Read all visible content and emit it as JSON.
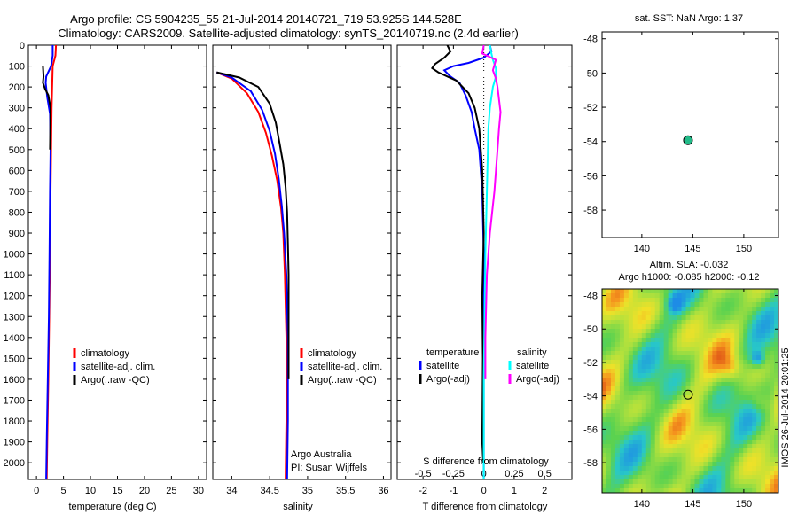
{
  "header": {
    "line1": "Argo profile: CS 5904235_55 21-Jul-2014 20140721_719 53.925S 144.528E",
    "line2": "Climatology: CARS2009. Satellite-adjusted climatology: synTS_20140719.nc (2.4d earlier)"
  },
  "colors": {
    "climatology": "#ff0000",
    "satellite": "#0000ff",
    "argo": "#000000",
    "sal_satellite": "#00ffff",
    "sal_argo": "#ff00ff",
    "marker": "#22bb88"
  },
  "chart_data": [
    {
      "id": "temperature",
      "type": "line",
      "xlabel": "temperature (deg C)",
      "ylabel": "",
      "xlim": [
        -1.5,
        31.5
      ],
      "ylim": [
        2080,
        0
      ],
      "xticks": [
        0,
        5,
        10,
        15,
        20,
        25,
        30
      ],
      "xticklabels": [
        "0",
        "5",
        "10",
        "15",
        "20",
        "25",
        "30"
      ],
      "yticks": [
        0,
        100,
        200,
        300,
        400,
        500,
        600,
        700,
        800,
        900,
        1000,
        1100,
        1200,
        1300,
        1400,
        1500,
        1600,
        1700,
        1800,
        1900,
        2000
      ],
      "yticklabels": [
        "0",
        "100",
        "200",
        "300",
        "400",
        "500",
        "600",
        "700",
        "800",
        "900",
        "1000",
        "1100",
        "1200",
        "1300",
        "1400",
        "1500",
        "1600",
        "1700",
        "1800",
        "1900",
        "2000"
      ],
      "legend": [
        "climatology",
        "satellite-adj. clim.",
        "Argo(..raw -QC)"
      ],
      "legend_position": "lower-center",
      "series": [
        {
          "name": "climatology",
          "color": "#ff0000",
          "points": [
            [
              3.6,
              0
            ],
            [
              3.5,
              50
            ],
            [
              3.0,
              100
            ],
            [
              2.9,
              200
            ],
            [
              2.8,
              300
            ],
            [
              2.7,
              500
            ],
            [
              2.6,
              700
            ],
            [
              2.5,
              1000
            ],
            [
              2.35,
              1300
            ],
            [
              2.2,
              1600
            ],
            [
              2.0,
              1900
            ],
            [
              1.9,
              2080
            ]
          ]
        },
        {
          "name": "satellite-adj. clim.",
          "color": "#0000ff",
          "points": [
            [
              3.0,
              0
            ],
            [
              3.0,
              50
            ],
            [
              2.7,
              100
            ],
            [
              1.8,
              150
            ],
            [
              1.7,
              180
            ],
            [
              2.0,
              250
            ],
            [
              2.5,
              330
            ],
            [
              2.6,
              500
            ],
            [
              2.5,
              700
            ],
            [
              2.4,
              1000
            ],
            [
              2.3,
              1300
            ],
            [
              2.1,
              1600
            ],
            [
              1.9,
              1900
            ],
            [
              1.8,
              2080
            ]
          ]
        },
        {
          "name": "Argo(..raw -QC)",
          "color": "#000000",
          "points": [
            [
              1.2,
              100
            ],
            [
              1.3,
              150
            ],
            [
              1.2,
              180
            ],
            [
              1.6,
              210
            ],
            [
              2.2,
              240
            ],
            [
              2.6,
              300
            ],
            [
              2.5,
              500
            ]
          ]
        }
      ]
    },
    {
      "id": "salinity",
      "type": "line",
      "xlabel": "salinity",
      "ylabel": "",
      "xlim": [
        33.75,
        36.1
      ],
      "ylim": [
        2080,
        0
      ],
      "xticks": [
        34,
        34.5,
        35,
        35.5,
        36
      ],
      "xticklabels": [
        "34",
        "34.5",
        "35",
        "35.5",
        "36"
      ],
      "legend": [
        "climatology",
        "satellite-adj. clim.",
        "Argo(..raw -QC)"
      ],
      "legend_position": "lower-right",
      "annotations": [
        "Argo Australia",
        "PI: Susan Wijffels"
      ],
      "series": [
        {
          "name": "climatology",
          "color": "#ff0000",
          "points": [
            [
              33.8,
              130
            ],
            [
              34.0,
              160
            ],
            [
              34.2,
              230
            ],
            [
              34.35,
              320
            ],
            [
              34.45,
              420
            ],
            [
              34.53,
              530
            ],
            [
              34.6,
              650
            ],
            [
              34.65,
              780
            ],
            [
              34.68,
              900
            ],
            [
              34.7,
              1100
            ],
            [
              34.72,
              1400
            ],
            [
              34.72,
              1800
            ],
            [
              34.71,
              2080
            ]
          ]
        },
        {
          "name": "satellite-adj. clim.",
          "color": "#0000ff",
          "points": [
            [
              33.8,
              130
            ],
            [
              34.0,
              155
            ],
            [
              34.25,
              220
            ],
            [
              34.4,
              310
            ],
            [
              34.5,
              410
            ],
            [
              34.57,
              520
            ],
            [
              34.62,
              640
            ],
            [
              34.66,
              770
            ],
            [
              34.69,
              900
            ],
            [
              34.72,
              1100
            ],
            [
              34.74,
              1400
            ],
            [
              34.74,
              1800
            ],
            [
              34.73,
              2080
            ]
          ]
        },
        {
          "name": "Argo(..raw -QC)",
          "color": "#000000",
          "points": [
            [
              33.8,
              130
            ],
            [
              34.1,
              155
            ],
            [
              34.35,
              200
            ],
            [
              34.5,
              280
            ],
            [
              34.58,
              370
            ],
            [
              34.63,
              470
            ],
            [
              34.68,
              570
            ],
            [
              34.71,
              680
            ],
            [
              34.73,
              800
            ],
            [
              34.74,
              950
            ],
            [
              34.75,
              1100
            ],
            [
              34.75,
              1300
            ],
            [
              34.75,
              1600
            ]
          ]
        }
      ]
    },
    {
      "id": "difference",
      "type": "line",
      "xlabel": "T difference from climatology",
      "xlabel_top": "S difference from climatology",
      "ylabel": "",
      "xlim": [
        -2.85,
        2.9
      ],
      "ylim": [
        2080,
        0
      ],
      "xticks": [
        -2,
        -1,
        0,
        1,
        2
      ],
      "xticklabels": [
        "-2",
        "-1",
        "0",
        "1",
        "2"
      ],
      "s_axis_ticks": [
        -0.5,
        -0.25,
        0,
        0.25,
        0.5
      ],
      "s_axis_ticklabels": [
        "-0.5",
        "-0.25",
        "0",
        "0.25",
        "0.5"
      ],
      "legend_temperature_title": "temperature",
      "legend_salinity_title": "salinity",
      "legend": [
        "satellite",
        "Argo(-adj)",
        "satellite",
        "Argo(-adj)"
      ],
      "series": [
        {
          "name": "T satellite",
          "color": "#0000ff",
          "points": [
            [
              0.2,
              0
            ],
            [
              0.25,
              30
            ],
            [
              0.0,
              60
            ],
            [
              -0.5,
              85
            ],
            [
              -1.0,
              100
            ],
            [
              -1.3,
              120
            ],
            [
              -1.1,
              150
            ],
            [
              -0.8,
              180
            ],
            [
              -0.6,
              240
            ],
            [
              -0.4,
              320
            ],
            [
              -0.3,
              400
            ],
            [
              -0.15,
              500
            ],
            [
              -0.05,
              700
            ],
            [
              0.0,
              1000
            ],
            [
              0.0,
              1500
            ],
            [
              0.0,
              2080
            ]
          ]
        },
        {
          "name": "T Argo(-adj)",
          "color": "#000000",
          "points": [
            [
              -1.2,
              0
            ],
            [
              -1.1,
              30
            ],
            [
              -1.3,
              60
            ],
            [
              -1.6,
              90
            ],
            [
              -1.7,
              110
            ],
            [
              -1.5,
              130
            ],
            [
              -0.9,
              170
            ],
            [
              -0.5,
              230
            ],
            [
              -0.3,
              300
            ],
            [
              -0.15,
              400
            ],
            [
              -0.05,
              600
            ],
            [
              0.0,
              900
            ],
            [
              -0.05,
              1200
            ],
            [
              -0.03,
              1500
            ],
            [
              -0.05,
              1900
            ],
            [
              -0.02,
              2000
            ]
          ]
        },
        {
          "name": "S satellite",
          "color": "#00ffff",
          "points": [
            [
              0.2,
              0
            ],
            [
              0.25,
              40
            ],
            [
              0.3,
              70
            ],
            [
              0.4,
              110
            ],
            [
              0.4,
              150
            ],
            [
              0.3,
              200
            ],
            [
              0.25,
              250
            ],
            [
              0.2,
              300
            ],
            [
              0.15,
              400
            ],
            [
              0.1,
              700
            ],
            [
              0.05,
              1000
            ],
            [
              0.0,
              1600
            ],
            [
              0.0,
              2080
            ]
          ]
        },
        {
          "name": "S Argo(-adj)",
          "color": "#ff00ff",
          "points": [
            [
              0.0,
              0
            ],
            [
              -0.05,
              40
            ],
            [
              0.4,
              70
            ],
            [
              0.3,
              120
            ],
            [
              0.4,
              160
            ],
            [
              0.45,
              200
            ],
            [
              0.5,
              260
            ],
            [
              0.55,
              320
            ],
            [
              0.5,
              400
            ],
            [
              0.45,
              500
            ],
            [
              0.35,
              700
            ],
            [
              0.2,
              900
            ],
            [
              0.1,
              1100
            ],
            [
              0.05,
              1400
            ],
            [
              0.05,
              1600
            ]
          ]
        }
      ]
    },
    {
      "id": "sst_map",
      "type": "scatter",
      "title": "sat. SST: NaN Argo: 1.37",
      "xlim": [
        136.1,
        153.4
      ],
      "ylim": [
        -59.6,
        -47.6
      ],
      "xticks": [
        140,
        145,
        150
      ],
      "xticklabels": [
        "140",
        "145",
        "150"
      ],
      "yticks": [
        -48,
        -50,
        -52,
        -54,
        -56,
        -58
      ],
      "yticklabels": [
        "-48",
        "-50",
        "-52",
        "-54",
        "-56",
        "-58"
      ],
      "points": [
        {
          "lon": 144.528,
          "lat": -53.925,
          "color": "#22bb88"
        }
      ]
    },
    {
      "id": "sla_map",
      "type": "heatmap",
      "title_line1": "Altim. SLA: -0.032",
      "title_line2": "Argo h1000: -0.085 h2000: -0.12",
      "xlim": [
        136.1,
        153.4
      ],
      "ylim": [
        -59.8,
        -47.6
      ],
      "xticks": [
        140,
        145,
        150
      ],
      "xticklabels": [
        "140",
        "145",
        "150"
      ],
      "yticks": [
        -48,
        -50,
        -52,
        -54,
        -56,
        -58
      ],
      "yticklabels": [
        "-48",
        "-50",
        "-52",
        "-54",
        "-56",
        "-58"
      ],
      "points": [
        {
          "lon": 144.528,
          "lat": -53.925
        }
      ],
      "side_label": "IMOS 26-Jul-2014 20:01:25"
    }
  ]
}
